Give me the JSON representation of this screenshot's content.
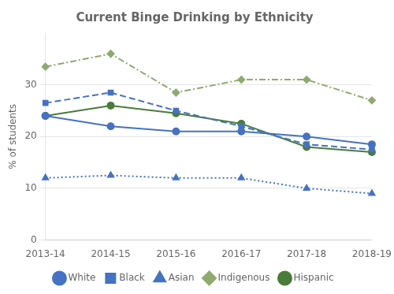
{
  "chart_data": {
    "type": "line",
    "title": "Current Binge Drinking by Ethnicity",
    "ylabel": "% of students",
    "categories": [
      "2013-14",
      "2014-15",
      "2015-16",
      "2016-17",
      "2017-18",
      "2018-19"
    ],
    "series": [
      {
        "name": "White",
        "color": "#4472c4",
        "line_style": "solid",
        "marker": "circle",
        "values": [
          24.0,
          22.0,
          21.0,
          21.0,
          20.0,
          18.5
        ]
      },
      {
        "name": "Black",
        "color": "#4472c4",
        "line_style": "dashed",
        "marker": "square",
        "values": [
          26.5,
          28.5,
          25.0,
          22.0,
          18.5,
          17.5
        ]
      },
      {
        "name": "Asian",
        "color": "#4472c4",
        "line_style": "dotted",
        "marker": "triangle",
        "values": [
          12.0,
          12.5,
          12.0,
          12.0,
          10.0,
          9.0
        ]
      },
      {
        "name": "Indigenous",
        "color": "#8faa6e",
        "line_style": "dashdot",
        "marker": "diamond",
        "values": [
          33.5,
          36.0,
          28.5,
          31.0,
          31.0,
          27.0
        ]
      },
      {
        "name": "Hispanic",
        "color": "#4a7c39",
        "line_style": "solid",
        "marker": "circle",
        "values": [
          24.0,
          26.0,
          24.5,
          22.5,
          18.0,
          17.0
        ]
      }
    ],
    "ylim": [
      0,
      40
    ],
    "yticks": [
      0,
      10,
      20,
      30
    ],
    "grid": true,
    "legend": "bottom"
  }
}
